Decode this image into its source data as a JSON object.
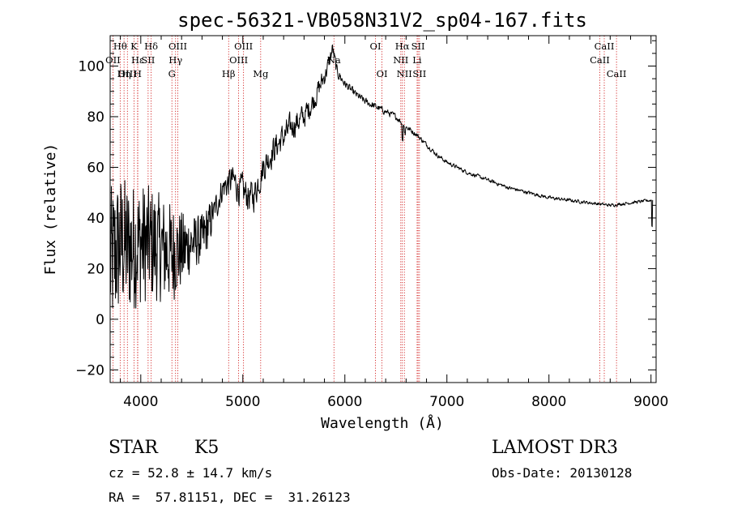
{
  "chart_data": {
    "type": "line",
    "title": "spec-56321-VB058N31V2_sp04-167.fits",
    "xlabel": "Wavelength (Å)",
    "ylabel": "Flux (relative)",
    "xlim": [
      3700,
      9050
    ],
    "ylim": [
      -25,
      112
    ],
    "xticks": [
      4000,
      5000,
      6000,
      7000,
      8000,
      9000
    ],
    "yticks": [
      -20,
      0,
      20,
      40,
      60,
      80,
      100
    ],
    "spectrum_anchors": [
      [
        3700,
        22
      ],
      [
        3800,
        30
      ],
      [
        3900,
        28
      ],
      [
        4000,
        30
      ],
      [
        4100,
        30
      ],
      [
        4200,
        28
      ],
      [
        4300,
        26
      ],
      [
        4400,
        27
      ],
      [
        4500,
        30
      ],
      [
        4600,
        32
      ],
      [
        4700,
        40
      ],
      [
        4800,
        52
      ],
      [
        4900,
        55
      ],
      [
        5000,
        50
      ],
      [
        5100,
        48
      ],
      [
        5200,
        60
      ],
      [
        5300,
        67
      ],
      [
        5400,
        72
      ],
      [
        5500,
        77
      ],
      [
        5600,
        80
      ],
      [
        5700,
        87
      ],
      [
        5800,
        96
      ],
      [
        5850,
        102
      ],
      [
        5880,
        107
      ],
      [
        5920,
        98
      ],
      [
        6000,
        93
      ],
      [
        6100,
        89
      ],
      [
        6200,
        86
      ],
      [
        6300,
        84
      ],
      [
        6400,
        82
      ],
      [
        6500,
        80
      ],
      [
        6600,
        76
      ],
      [
        6700,
        73
      ],
      [
        6800,
        69
      ],
      [
        6900,
        65
      ],
      [
        7000,
        62
      ],
      [
        7200,
        58
      ],
      [
        7400,
        55
      ],
      [
        7600,
        52
      ],
      [
        7800,
        50
      ],
      [
        8000,
        48
      ],
      [
        8200,
        47
      ],
      [
        8400,
        46
      ],
      [
        8600,
        45
      ],
      [
        8800,
        46
      ],
      [
        9000,
        47
      ]
    ],
    "noise_profile": [
      [
        3700,
        30
      ],
      [
        4000,
        24
      ],
      [
        4300,
        20
      ],
      [
        4500,
        11
      ],
      [
        4700,
        8
      ],
      [
        5000,
        10
      ],
      [
        5200,
        9
      ],
      [
        5500,
        8
      ],
      [
        5800,
        6
      ],
      [
        6000,
        2.5
      ],
      [
        6500,
        1.8
      ],
      [
        7000,
        1.2
      ],
      [
        9000,
        0.9
      ]
    ],
    "features": [
      {
        "x": 6563,
        "dy": -6
      },
      {
        "x": 6588,
        "dy": -3
      },
      {
        "x": 9010,
        "dy": -10
      }
    ],
    "emission_lines": [
      {
        "name": "Hθ",
        "x": 3798,
        "row": 0
      },
      {
        "name": "OII",
        "x": 3727,
        "row": 1
      },
      {
        "name": "OIII",
        "x": 3869,
        "row": 2
      },
      {
        "name": "Hη",
        "x": 3836,
        "row": 2
      },
      {
        "name": "K",
        "x": 3934,
        "row": 0
      },
      {
        "name": "H",
        "x": 3969,
        "row": 2
      },
      {
        "name": "Hε",
        "x": 3970,
        "row": 1
      },
      {
        "name": "SII",
        "x": 4072,
        "row": 1
      },
      {
        "name": "Hδ",
        "x": 4102,
        "row": 0
      },
      {
        "name": "OIII",
        "x": 4363,
        "row": 0
      },
      {
        "name": "Hγ",
        "x": 4341,
        "row": 1
      },
      {
        "name": "G",
        "x": 4305,
        "row": 2
      },
      {
        "name": "Hβ",
        "x": 4861,
        "row": 2
      },
      {
        "name": "OIII",
        "x": 5007,
        "row": 0
      },
      {
        "name": "OIII",
        "x": 4959,
        "row": 1
      },
      {
        "name": "Mg",
        "x": 5175,
        "row": 2
      },
      {
        "name": "Na",
        "x": 5893,
        "row": 1
      },
      {
        "name": "OI",
        "x": 6300,
        "row": 0
      },
      {
        "name": "OI",
        "x": 6364,
        "row": 2
      },
      {
        "name": "Hα",
        "x": 6563,
        "row": 0
      },
      {
        "name": "NII",
        "x": 6548,
        "row": 1
      },
      {
        "name": "NII",
        "x": 6583,
        "row": 2
      },
      {
        "name": "SII",
        "x": 6717,
        "row": 0
      },
      {
        "name": "Li",
        "x": 6708,
        "row": 1
      },
      {
        "name": "SII",
        "x": 6731,
        "row": 2
      },
      {
        "name": "CaII",
        "x": 8542,
        "row": 0
      },
      {
        "name": "CaII",
        "x": 8498,
        "row": 1
      },
      {
        "name": "CaII",
        "x": 8662,
        "row": 2
      }
    ],
    "grid": false,
    "legend": "none",
    "colors": {
      "spectrum": "#000000",
      "line_marker": "#cc0000",
      "axis": "#000000"
    }
  },
  "info": {
    "class": "STAR",
    "subclass": "K5",
    "survey": "LAMOST DR3",
    "cz": "cz = 52.8 ± 14.7 km/s",
    "obs_date": "Obs-Date: 20130128",
    "radec": "RA =  57.81151, DEC =  31.26123"
  }
}
